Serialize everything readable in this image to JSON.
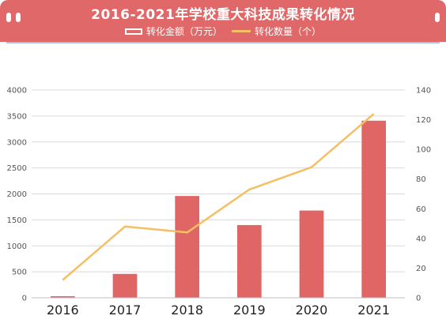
{
  "title": "2016-2021年学校重大科技成果转化情况",
  "legend": {
    "bar_label": "转化金额（万元）",
    "line_label": "转化数量（个）"
  },
  "colors": {
    "banner": "#e06868",
    "bar": "#e06666",
    "line": "#f5bf63",
    "grid": "#d9d9d9"
  },
  "chart_data": {
    "type": "bar",
    "title": "2016-2021年学校重大科技成果转化情况",
    "categories": [
      "2016",
      "2017",
      "2018",
      "2019",
      "2020",
      "2021"
    ],
    "series": [
      {
        "name": "转化金额（万元）",
        "type": "bar",
        "axis": "left",
        "values": [
          30,
          460,
          1960,
          1400,
          1680,
          3410
        ]
      },
      {
        "name": "转化数量（个）",
        "type": "line",
        "axis": "right",
        "values": [
          12,
          48,
          44,
          73,
          88,
          124
        ]
      }
    ],
    "ylim_left": [
      0,
      4000
    ],
    "yticks_left": [
      "0",
      "500",
      "1000",
      "1500",
      "2000",
      "2500",
      "3000",
      "3500",
      "4000"
    ],
    "ylim_right": [
      0,
      140
    ],
    "yticks_right": [
      "0",
      "20",
      "40",
      "60",
      "80",
      "100",
      "120",
      "140"
    ],
    "grid": true,
    "legend_position": "top-center"
  }
}
